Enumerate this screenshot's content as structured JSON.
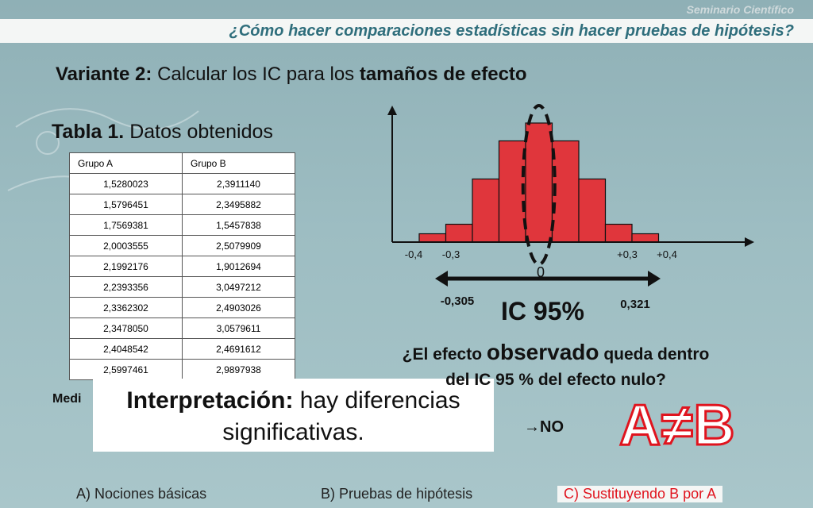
{
  "header": {
    "seminar": "Seminario Científico",
    "title": "¿Cómo hacer comparaciones estadísticas sin hacer pruebas de hipótesis?"
  },
  "variant": {
    "prefix": "Variante 2:",
    "middle": " Calcular los IC para los ",
    "bold": "tamaños de efecto"
  },
  "table": {
    "title_bold": "Tabla 1.",
    "title_rest": " Datos obtenidos",
    "columns": [
      "Grupo A",
      "Grupo B"
    ],
    "rows": [
      [
        "1,5280023",
        "2,3911140"
      ],
      [
        "1,5796451",
        "2,3495882"
      ],
      [
        "1,7569381",
        "1,5457838"
      ],
      [
        "2,0003555",
        "2,5079909"
      ],
      [
        "2,1992176",
        "1,9012694"
      ],
      [
        "2,2393356",
        "3,0497212"
      ],
      [
        "2,3362302",
        "2,4903026"
      ],
      [
        "2,3478050",
        "3,0579611"
      ],
      [
        "2,4048542",
        "2,4691612"
      ],
      [
        "2,5997461",
        "2,9897938"
      ]
    ]
  },
  "medi_text": "Medi",
  "interpretation": {
    "bold": "Interpretación:",
    "rest": " hay diferencias significativas."
  },
  "chart_data": {
    "type": "bar",
    "title": "",
    "xlabel": "",
    "ylabel": "",
    "tick_labels": [
      "-0,4",
      "-0,3",
      "0",
      "+0,3",
      "+0,4"
    ],
    "bar_heights": [
      0.07,
      0.15,
      0.53,
      0.85,
      1.0,
      0.85,
      0.53,
      0.15,
      0.07
    ],
    "bar_color": "#e0363c",
    "ci_lower": "-0,305",
    "ci_upper": "0,321"
  },
  "ic_label": "IC 95%",
  "question": {
    "line1_a": "¿El efecto ",
    "line1_big": "observado",
    "line1_b": " queda dentro",
    "line2": "del IC 95 % del efecto nulo?"
  },
  "answer": "→NO",
  "result": "A≠B",
  "footer": {
    "a": "A) Nociones básicas",
    "b": "B) Pruebas de hipótesis",
    "c": "C) Sustituyendo B por A"
  },
  "colors": {
    "accent_red": "#e0141e",
    "header_text": "#2f6e7c"
  }
}
